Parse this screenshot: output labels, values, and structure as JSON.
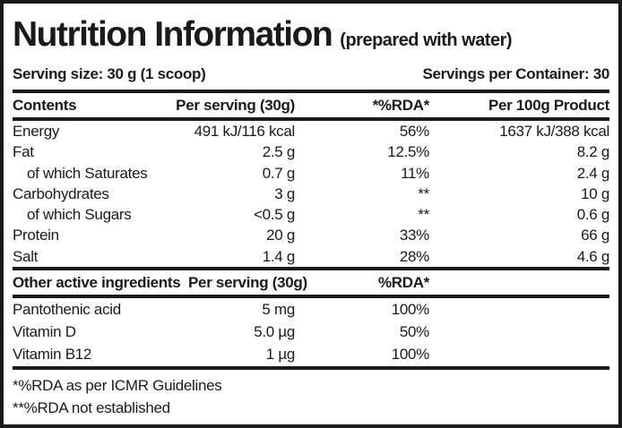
{
  "title": "Nutrition Information",
  "subtitle": "(prepared with water)",
  "serving_size": "Serving size: 30 g (1 scoop)",
  "servings_per_container": "Servings per Container: 30",
  "main_table": {
    "headers": [
      "Contents",
      "Per serving (30g)",
      "*%RDA*",
      "Per 100g Product"
    ],
    "rows": [
      {
        "name": "Energy",
        "per_serving": "491 kJ/116 kcal",
        "rda": "56%",
        "per_100g": "1637 kJ/388 kcal"
      },
      {
        "name": "Fat",
        "per_serving": "2.5 g",
        "rda": "12.5%",
        "per_100g": "8.2 g"
      },
      {
        "name": "of which Saturates",
        "per_serving": "0.7 g",
        "rda": "11%",
        "per_100g": "2.4 g"
      },
      {
        "name": "Carbohydrates",
        "per_serving": "3 g",
        "rda": "**",
        "per_100g": "10 g"
      },
      {
        "name": "of which Sugars",
        "per_serving": "<0.5 g",
        "rda": "**",
        "per_100g": "0.6 g"
      },
      {
        "name": "Protein",
        "per_serving": "20 g",
        "rda": "33%",
        "per_100g": "66 g"
      },
      {
        "name": "Salt",
        "per_serving": "1.4 g",
        "rda": "28%",
        "per_100g": "4.6 g"
      }
    ]
  },
  "secondary_table": {
    "headers": [
      "Other active ingredients",
      "Per serving (30g)",
      "%RDA*",
      ""
    ],
    "rows": [
      {
        "name": "Pantothenic acid",
        "per_serving": "5 mg",
        "rda": "100%",
        "per_100g": ""
      },
      {
        "name": "Vitamin D",
        "per_serving": "5.0 µg",
        "rda": "50%",
        "per_100g": ""
      },
      {
        "name": "Vitamin B12",
        "per_serving": "1 µg",
        "rda": "100%",
        "per_100g": ""
      }
    ]
  },
  "footnotes": [
    "*%RDA as per ICMR Guidelines",
    "**%RDA not established"
  ],
  "colors": {
    "text": "#1a1a1a",
    "background": "#ffffff",
    "rule": "#1a1a1a"
  }
}
